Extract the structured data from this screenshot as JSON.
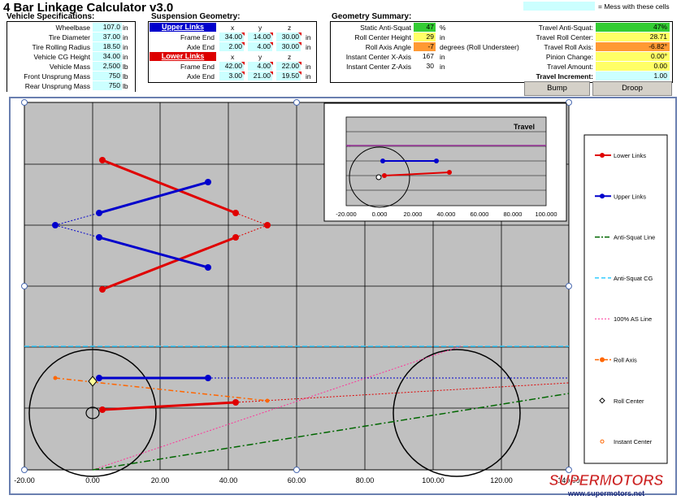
{
  "title": "4 Bar Linkage Calculator v3.0",
  "legend_note": "= Mess with these cells",
  "vehicle": {
    "header": "Vehicle Specifications:",
    "rows": [
      {
        "label": "Wheelbase",
        "value": "107.0",
        "unit": "in"
      },
      {
        "label": "Tire Diameter",
        "value": "37.00",
        "unit": "in"
      },
      {
        "label": "Tire Rolling Radius",
        "value": "18.50",
        "unit": "in"
      },
      {
        "label": "Vehicle CG Height",
        "value": "34.00",
        "unit": "in"
      },
      {
        "label": "Vehicle Mass",
        "value": "2,500",
        "unit": "lb"
      },
      {
        "label": "Front Unsprung Mass",
        "value": "750",
        "unit": "lb"
      },
      {
        "label": "Rear Unsprung Mass",
        "value": "750",
        "unit": "lb"
      }
    ]
  },
  "suspension": {
    "header": "Suspension Geometry:",
    "upper_label": "Upper Links",
    "lower_label": "Lower Links",
    "cols": [
      "x",
      "y",
      "z"
    ],
    "upper": [
      {
        "label": "Frame End",
        "x": "34.00",
        "y": "14.00",
        "z": "30.00",
        "unit": "in"
      },
      {
        "label": "Axle End",
        "x": "2.00",
        "y": "4.00",
        "z": "30.00",
        "unit": "in"
      }
    ],
    "lower": [
      {
        "label": "Frame End",
        "x": "42.00",
        "y": "4.00",
        "z": "22.00",
        "unit": "in"
      },
      {
        "label": "Axle End",
        "x": "3.00",
        "y": "21.00",
        "z": "19.50",
        "unit": "in"
      }
    ]
  },
  "geometry": {
    "header": "Geometry Summary:",
    "left": [
      {
        "label": "Static Anti-Squat",
        "value": "47",
        "unit": "%",
        "color": "green"
      },
      {
        "label": "Roll Center Height",
        "value": "29",
        "unit": "in",
        "color": "yellow"
      },
      {
        "label": "Roll Axis Angle",
        "value": "-7",
        "unit": "degrees (Roll Understeer)",
        "color": "orange"
      },
      {
        "label": "Instant Center X-Axis",
        "value": "167",
        "unit": "in",
        "color": "none"
      },
      {
        "label": "Instant Center Z-Axis",
        "value": "30",
        "unit": "in",
        "color": "none"
      }
    ],
    "right": [
      {
        "label": "Travel Anti-Squat:",
        "value": "47%",
        "color": "green"
      },
      {
        "label": "Travel Roll Center:",
        "value": "28.71",
        "color": "yellow"
      },
      {
        "label": "Travel Roll Axis:",
        "value": "-6.82°",
        "color": "orange"
      },
      {
        "label": "Pinion Change:",
        "value": "0.00°",
        "color": "yellow"
      },
      {
        "label": "Travel Amount:",
        "value": "0.00",
        "color": "yellow"
      },
      {
        "label": "Travel Increment:",
        "value": "1.00",
        "color": "cyan"
      }
    ]
  },
  "buttons": {
    "bump": "Bump",
    "droop": "Droop"
  },
  "chart": {
    "x_ticks": [
      "-20.00",
      "0.00",
      "20.00",
      "40.00",
      "60.00",
      "80.00",
      "100.00",
      "120.00",
      "140.00"
    ],
    "inset_title": "Travel",
    "inset_ticks": [
      "-20.000",
      "0.000",
      "20.000",
      "40.000",
      "60.000",
      "80.000",
      "100.000"
    ]
  },
  "legend": [
    {
      "label": "Lower Links",
      "color": "#e00000"
    },
    {
      "label": "Upper Links",
      "color": "#0000cc"
    },
    {
      "label": "Anti-Squat Line",
      "color": "#006600"
    },
    {
      "label": "Anti-Squat CG",
      "color": "#33ccff"
    },
    {
      "label": "100% AS Line",
      "color": "#ff3399"
    },
    {
      "label": "Roll Axis",
      "color": "#ff6600"
    },
    {
      "label": "Roll Center",
      "color": "#000000"
    },
    {
      "label": "Instant Center",
      "color": "#ff6600"
    }
  ],
  "watermark": {
    "brand": "SUPERMOTORS",
    "url": "www.supermotors.net"
  }
}
